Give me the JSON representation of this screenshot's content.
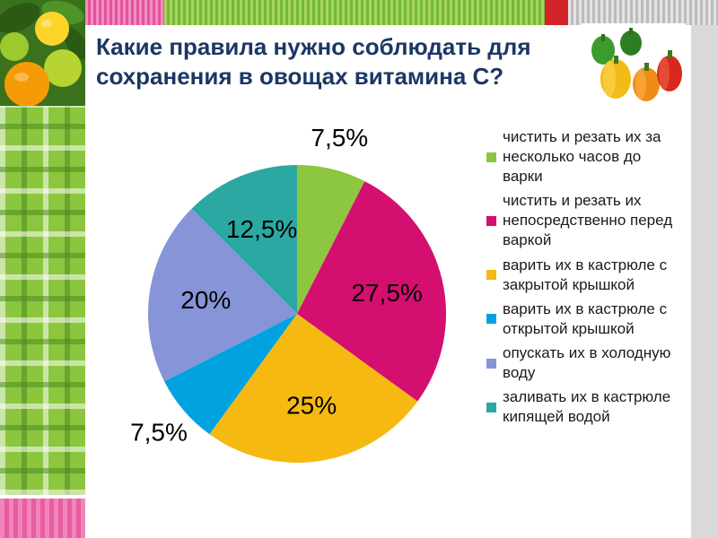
{
  "slide": {
    "title": "Какие правила нужно соблюдать для сохранения в овощах витамина С?"
  },
  "chart_data": {
    "type": "pie",
    "title": "Какие правила нужно соблюдать для сохранения в овощах витамина С?",
    "unit": "%",
    "legend_position": "right",
    "start_angle_deg": -90,
    "direction": "clockwise",
    "slices": [
      {
        "label": "чистить и резать их за несколько часов до варки",
        "value": 7.5,
        "pct_label": "7,5%",
        "color": "#8dc63f",
        "label_outside": true
      },
      {
        "label": "чистить и резать их непосредственно перед варкой",
        "value": 27.5,
        "pct_label": "27,5%",
        "color": "#d40f6f",
        "label_outside": false
      },
      {
        "label": "варить их в кастрюле с закрытой крышкой",
        "value": 25,
        "pct_label": "25%",
        "color": "#f6b912",
        "label_outside": false
      },
      {
        "label": "варить их в кастрюле с открытой крышкой",
        "value": 7.5,
        "pct_label": "7,5%",
        "color": "#00a3e0",
        "label_outside": true
      },
      {
        "label": "опускать их в холодную воду",
        "value": 20,
        "pct_label": "20%",
        "color": "#8894d8",
        "label_outside": false
      },
      {
        "label": "заливать их в кастрюле кипящей водой",
        "value": 12.5,
        "pct_label": "12,5%",
        "color": "#2ba8a2",
        "label_outside": false
      }
    ]
  }
}
